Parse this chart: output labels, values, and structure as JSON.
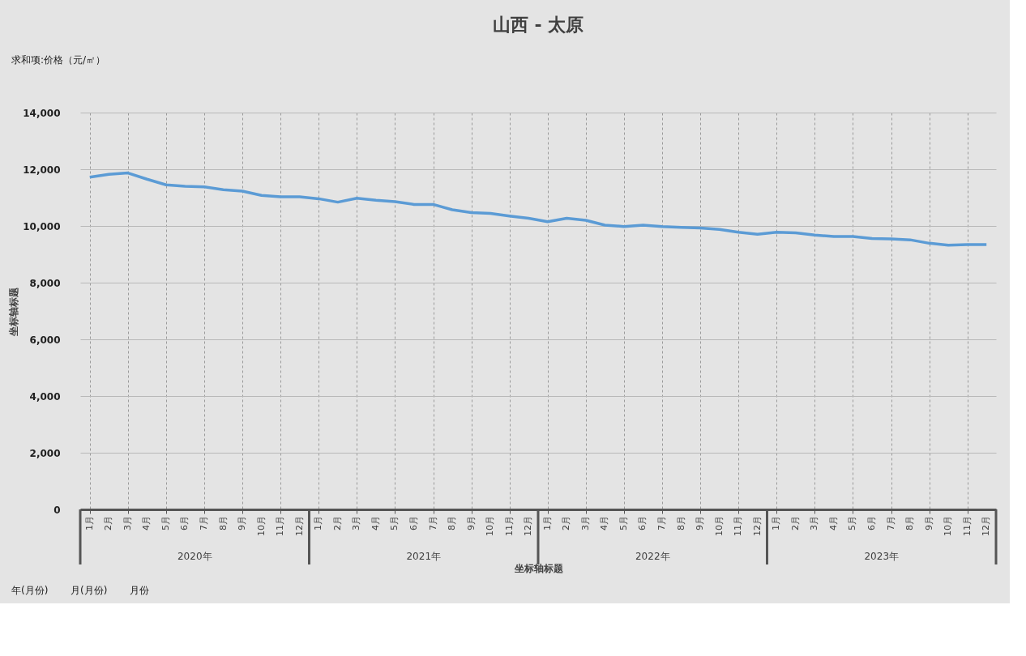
{
  "chart_data": {
    "type": "line",
    "title": "山西 - 太原",
    "xlabel": "坐标轴标题",
    "ylabel": "坐标轴标题",
    "categories": [
      "1月",
      "2月",
      "3月",
      "4月",
      "5月",
      "6月",
      "7月",
      "8月",
      "9月",
      "10月",
      "11月",
      "12月",
      "1月",
      "2月",
      "3月",
      "4月",
      "5月",
      "6月",
      "7月",
      "8月",
      "9月",
      "10月",
      "11月",
      "12月",
      "1月",
      "2月",
      "3月",
      "4月",
      "5月",
      "6月",
      "7月",
      "8月",
      "9月",
      "10月",
      "11月",
      "12月",
      "1月",
      "2月",
      "3月",
      "4月",
      "5月",
      "6月",
      "7月",
      "8月",
      "9月",
      "10月",
      "11月",
      "12月"
    ],
    "series": [
      {
        "color": "#5b9bd5",
        "values": [
          11720,
          11820,
          11870,
          11650,
          11450,
          11400,
          11380,
          11280,
          11230,
          11080,
          11030,
          11030,
          10960,
          10840,
          10980,
          10910,
          10860,
          10760,
          10760,
          10570,
          10470,
          10440,
          10350,
          10270,
          10150,
          10270,
          10200,
          10030,
          9980,
          10030,
          9980,
          9950,
          9930,
          9880,
          9780,
          9710,
          9780,
          9760,
          9680,
          9630,
          9630,
          9560,
          9540,
          9510,
          9390,
          9320,
          9340,
          9340
        ]
      }
    ],
    "ylim": [
      0,
      14000
    ],
    "yticks": [
      {
        "value": 0,
        "label": "0"
      },
      {
        "value": 2000,
        "label": "2,000"
      },
      {
        "value": 4000,
        "label": "4,000"
      },
      {
        "value": 6000,
        "label": "6,000"
      },
      {
        "value": 8000,
        "label": "8,000"
      },
      {
        "value": 10000,
        "label": "10,000"
      },
      {
        "value": 12000,
        "label": "12,000"
      },
      {
        "value": 14000,
        "label": "14,000"
      }
    ],
    "grid": true,
    "marker": "none",
    "line_style": "solid",
    "annotations": [
      "求和项:价格（元/㎡）",
      "2020年",
      "2021年",
      "2022年",
      "2023年",
      "年(月份)",
      "月(月份)",
      "月份"
    ]
  }
}
